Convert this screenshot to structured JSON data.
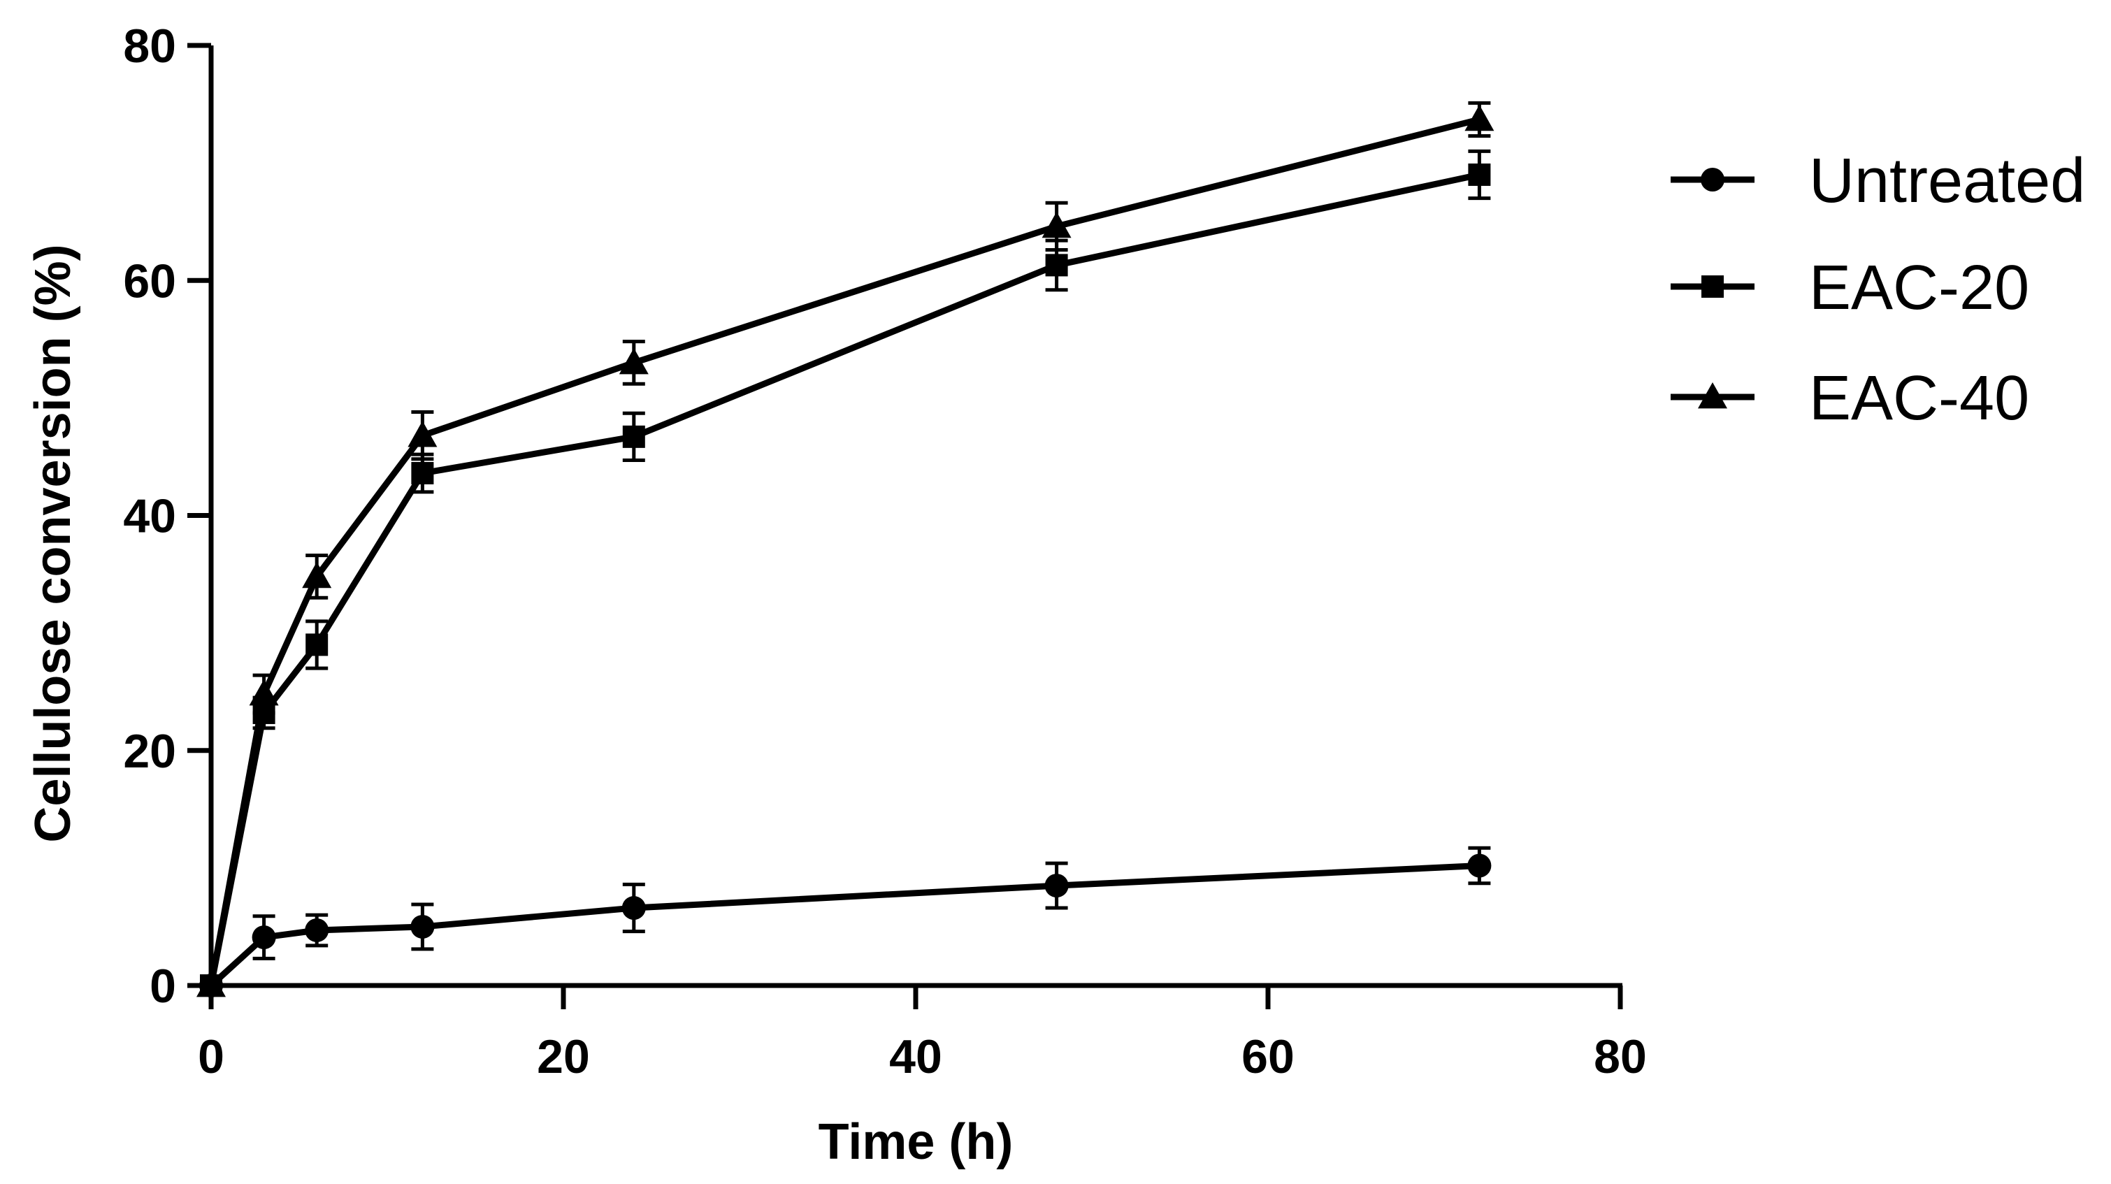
{
  "chart_data": {
    "type": "line",
    "title": "",
    "xlabel": "Time (h)",
    "ylabel": "Cellulose conversion (%)",
    "xlim": [
      0,
      80
    ],
    "ylim": [
      0,
      80
    ],
    "x_ticks": [
      "0",
      "20",
      "40",
      "60",
      "80"
    ],
    "y_ticks": [
      "0",
      "20",
      "40",
      "60",
      "80"
    ],
    "x_tick_values": [
      0,
      20,
      40,
      60,
      80
    ],
    "y_tick_values": [
      0,
      20,
      40,
      60,
      80
    ],
    "grid": false,
    "legend_position": "right",
    "x": [
      0,
      3,
      6,
      12,
      24,
      48,
      72
    ],
    "series": [
      {
        "name": "Untreated",
        "marker": "circle",
        "values": [
          0,
          4.1,
          4.7,
          5.0,
          6.6,
          8.5,
          10.2
        ],
        "errors": [
          0,
          1.8,
          1.3,
          1.9,
          2.0,
          1.9,
          1.5
        ]
      },
      {
        "name": "EAC-20",
        "marker": "square",
        "values": [
          0,
          23.2,
          29.0,
          43.6,
          46.7,
          61.3,
          69.0
        ],
        "errors": [
          0,
          1.3,
          2.0,
          1.6,
          2.0,
          2.1,
          2.0
        ]
      },
      {
        "name": "EAC-40",
        "marker": "triangle",
        "values": [
          0,
          24.8,
          34.8,
          46.8,
          53.0,
          64.6,
          73.7
        ],
        "errors": [
          0,
          1.6,
          1.8,
          2.0,
          1.8,
          2.0,
          1.4
        ]
      }
    ]
  },
  "colors": {
    "line": "#000000",
    "background": "#ffffff"
  }
}
